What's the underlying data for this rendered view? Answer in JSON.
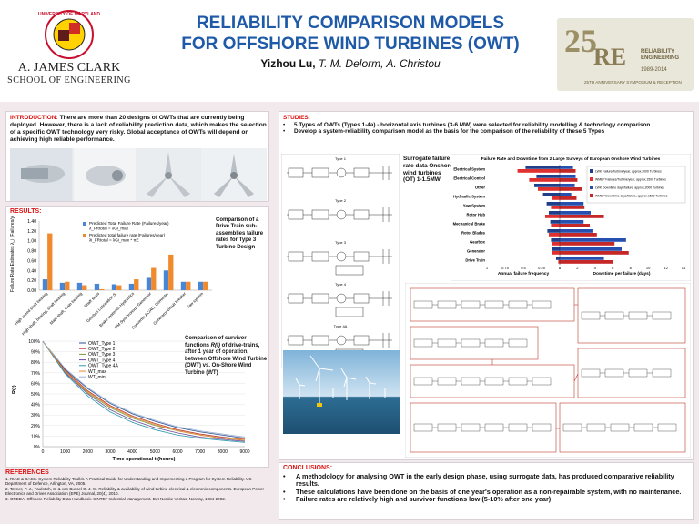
{
  "header": {
    "title_line1": "RELIABILITY COMPARISON MODELS",
    "title_line2": "FOR OFFSHORE WIND TURBINES (OWT)",
    "author_main": "Yizhou Lu,",
    "author_rest": "T.  M. Delorm, A. Christou",
    "left_logo": {
      "school_name": "A. JAMES CLARK",
      "school_sub": "SCHOOL OF ENGINEERING",
      "seal_text": "UNIVERSITY OF MARYLAND"
    },
    "right_logo": {
      "num": "25",
      "re": "RE",
      "line1": "RELIABILITY",
      "line2": "ENGINEERING",
      "years": "1989-2014",
      "caption": "25TH ANNIVERSARY SYMPOSIUM & RECEPTION"
    }
  },
  "introduction": {
    "heading": "INTRODUCTION:",
    "text": "There are more than 20 designs of OWTs that are currently being deployed. However, there is a lack of reliability prediction data, which makes the selection of a specific OWT technology very risky. Global acceptance of OWTs will depend on achieving high reliable performance."
  },
  "studies": {
    "heading": "STUDIES:",
    "bullet1": "5 Types of OWTs (Types 1-4a) - horizontal axis turbines (3-6 MW) were selected for reliability modelling & technology comparison.",
    "bullet2": "Develop a system-reliability comparison model as the basis for the comparison of the reliability of these 5 Types",
    "type_labels": [
      "Type 1",
      "Type 2",
      "Type 3",
      "Type 4",
      "Type 4A"
    ],
    "surrogate_text": "Surrogate failure rate data Onshore wind turbines (OT) 1-1.5MW"
  },
  "results": {
    "heading": "RESULTS:",
    "bar_caption": "Comparison of a Drive Train sub-assemblies failure rates for Type 3 Turbine Design",
    "survival_caption_a": "Comparison of survivor functions",
    "survival_caption_b": "R(t)",
    "survival_caption_c": "of drive-trains, after 1 year of operation, between Offshore Wind Turbine (OWT) vs. On-Shore Wind Turbine (WT)"
  },
  "references": {
    "heading": "REFERENCES",
    "items": [
      "1.   RIAC & DACS. System Reliability Toolkit. A Practical Guide for Understanding and Implementing a Program for System Reliability. US Department of Defence, Arlington, VA, 2005.",
      "2.   Tavner, P. J., Faulstich, S. & van Bussel G. J. W. Reliability & availability of wind turbine electrical & electronic components. European Power Electronics and Drives Association (EPE) Journal, 20(4), 2010.",
      "3.   OREDA, Offshore Reliability Data Handbook. SINTEF Industrial Management. Det Norske Veritas, Norway, 1984-2002."
    ]
  },
  "conclusions": {
    "heading": "CONCLUSIONS:",
    "items": [
      "A methodology for analysing OWT in the early design phase, using surrogate data, has produced comparative reliability results.",
      "These calculations have been done on the basis of one year's operation as a non-repairable system, with no maintenance.",
      "Failure rates are relatively high and survivor functions low (5-10% after one year)"
    ]
  },
  "chart_data": [
    {
      "type": "bar",
      "title": "",
      "ylabel": "Failure Rate Estimates λ_i (Failures/year)",
      "ylim": [
        0,
        1.4
      ],
      "yticks": [
        "0.00",
        "0.20",
        "0.40",
        "0.60",
        "0.80",
        "1.00",
        "1.20",
        "1.40"
      ],
      "categories": [
        "High speed shaft bearing",
        "High shaft, bearing, shaft bearing",
        "Main shaft, main bearing",
        "Shaft seals",
        "Gearbox Lubrication S.",
        "Brake systems, Hydraulics",
        "PM Synchronous Generator",
        "Converter AC/AC, Converter",
        "Generator circuit breaker",
        "Yaw system"
      ],
      "series": [
        {
          "name": "Predicted Total Failure Rate (Failures/year)",
          "sub": "λ_FRtotal = λGi_max",
          "color": "#4a86d6",
          "values": [
            0.22,
            0.15,
            0.15,
            0.13,
            0.12,
            0.13,
            0.25,
            0.4,
            0.17,
            0.17
          ]
        },
        {
          "name": "Predicted total failure rate (Failures/year)",
          "sub": "λi_FRtotal = λGi_max * πE",
          "color": "#f08a2c",
          "values": [
            1.15,
            0.17,
            0.1,
            0.02,
            0.1,
            0.22,
            0.45,
            0.72,
            0.17,
            0.17
          ]
        }
      ]
    },
    {
      "type": "line",
      "xlabel": "Time operational t (hours)",
      "ylabel": "R(t)",
      "xlim": [
        0,
        9000
      ],
      "ylim": [
        0,
        100
      ],
      "xticks": [
        "0",
        "1000",
        "2000",
        "3000",
        "4000",
        "5000",
        "6000",
        "7000",
        "8000",
        "9000"
      ],
      "yticks": [
        "0%",
        "10%",
        "20%",
        "30%",
        "40%",
        "50%",
        "60%",
        "70%",
        "80%",
        "90%",
        "100%"
      ],
      "x": [
        0,
        1000,
        2000,
        3000,
        4000,
        5000,
        6000,
        7000,
        8000,
        9000
      ],
      "series": [
        {
          "name": "OWT_Type 1",
          "color": "#2b4e8c",
          "values": [
            100,
            73,
            55,
            41,
            31,
            24,
            18,
            14,
            11,
            8
          ]
        },
        {
          "name": "OWT_Type 2",
          "color": "#c0392b",
          "values": [
            100,
            72,
            53,
            39,
            29,
            22,
            16,
            12,
            9,
            7
          ]
        },
        {
          "name": "OWT_Type 3",
          "color": "#7a9a3a",
          "values": [
            100,
            71,
            51,
            37,
            27,
            20,
            15,
            11,
            8,
            6
          ]
        },
        {
          "name": "OWT_Type 4",
          "color": "#6c4a9a",
          "values": [
            100,
            70,
            50,
            35,
            25,
            18,
            13,
            9,
            7,
            5
          ]
        },
        {
          "name": "OWT_Type 4A",
          "color": "#2a9ab0",
          "values": [
            100,
            69,
            48,
            33,
            23,
            16,
            11,
            8,
            6,
            4
          ]
        },
        {
          "name": "WT_max",
          "color": "#e58a2c",
          "values": [
            100,
            71,
            52,
            38,
            28,
            21,
            15,
            11,
            8,
            6
          ]
        },
        {
          "name": "WT_min",
          "color": "#9ab4d8",
          "values": [
            100,
            74,
            56,
            42,
            32,
            25,
            19,
            15,
            12,
            9
          ]
        }
      ]
    },
    {
      "type": "bar",
      "title": "Failure Rate and Downtime from  2 Large Surveys of European Onshore Wind Turbines",
      "xlabel_left": "Annual failure frequency",
      "xlabel_right": "Downtime per failure (days)",
      "left_ticks": [
        "1",
        "0.75",
        "0.5",
        "0.25",
        "0"
      ],
      "right_ticks": [
        "0",
        "2",
        "4",
        "6",
        "8",
        "10",
        "12",
        "14"
      ],
      "categories": [
        "Electrical System",
        "Electrical Control",
        "Other",
        "Hydraulic System",
        "Yaw System",
        "Rotor Hub",
        "Mechanical Brake",
        "Rotor Blades",
        "Gearbox",
        "Generator",
        "Drive Train"
      ],
      "legend": [
        "LWK Failure/Turbine/year, approx.2000 Turbines",
        "WMEP Failures/Turbine/year, approx.1500 Turbines",
        "LWK Downtime days/failure, approx.2000 Turbines",
        "WMEP Downtime days/failure, approx.1500 Turbines"
      ],
      "series": [
        {
          "name": "LWK failure",
          "color": "#1f3f8a",
          "values": [
            0.47,
            0.32,
            0.35,
            0.23,
            0.18,
            0.15,
            0.13,
            0.17,
            0.12,
            0.1,
            0.05
          ]
        },
        {
          "name": "WMEP failure",
          "color": "#e03030",
          "values": [
            0.58,
            0.42,
            0.3,
            0.1,
            0.12,
            0.2,
            0.12,
            0.15,
            0.1,
            0.11,
            0.02
          ]
        },
        {
          "name": "LWK downtime",
          "color": "#2650b0",
          "values": [
            1.5,
            1.8,
            1.7,
            1.3,
            2.7,
            3.5,
            2.7,
            3.7,
            7.5,
            7.0,
            5.0
          ]
        },
        {
          "name": "WMEP downtime",
          "color": "#c62828",
          "values": [
            1.8,
            2.0,
            2.5,
            1.9,
            2.8,
            5.0,
            3.4,
            4.2,
            6.2,
            7.8,
            6.0
          ]
        }
      ]
    }
  ]
}
